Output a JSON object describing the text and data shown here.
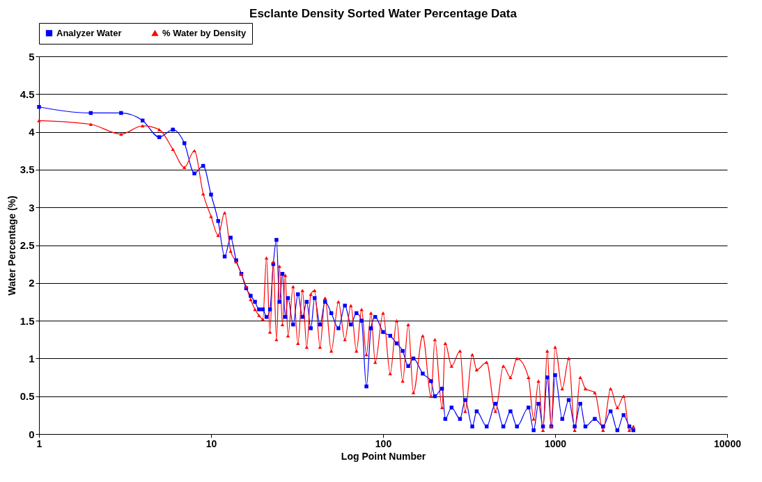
{
  "chart_data": {
    "type": "line",
    "title": "Esclante Density Sorted Water Percentage Data",
    "xlabel": "Log Point Number",
    "ylabel": "Water Percentage (%)",
    "log": "x",
    "xlim": [
      1,
      10000
    ],
    "xticks": [
      1,
      10,
      100,
      1000,
      10000
    ],
    "ylim": [
      0,
      5
    ],
    "yticks": [
      0,
      0.5,
      1,
      1.5,
      2,
      2.5,
      3,
      3.5,
      4,
      4.5,
      5
    ],
    "grid": "y",
    "legend": "top",
    "line_style": "solid",
    "series": [
      {
        "name": "Analyzer Water",
        "color": "#0000ff",
        "marker": "square",
        "x": [
          1,
          2,
          3,
          4,
          5,
          6,
          7,
          8,
          9,
          10,
          11,
          12,
          13,
          14,
          15,
          16,
          17,
          18,
          19,
          20,
          21,
          22,
          23,
          24,
          25,
          26,
          27,
          28,
          30,
          32,
          34,
          36,
          38,
          40,
          43,
          46,
          50,
          55,
          60,
          65,
          70,
          75,
          80,
          85,
          90,
          100,
          110,
          120,
          130,
          140,
          150,
          170,
          190,
          200,
          220,
          230,
          250,
          280,
          300,
          330,
          350,
          400,
          450,
          500,
          550,
          600,
          700,
          750,
          800,
          850,
          900,
          950,
          1000,
          1100,
          1200,
          1300,
          1400,
          1500,
          1700,
          1900,
          2100,
          2300,
          2500,
          2700,
          2850
        ],
        "values": [
          4.33,
          4.25,
          4.25,
          4.15,
          3.93,
          4.03,
          3.85,
          3.45,
          3.55,
          3.17,
          2.82,
          2.35,
          2.6,
          2.3,
          2.12,
          1.93,
          1.83,
          1.75,
          1.65,
          1.65,
          1.55,
          1.65,
          2.25,
          2.57,
          1.75,
          2.12,
          1.55,
          1.8,
          1.45,
          1.85,
          1.55,
          1.75,
          1.4,
          1.8,
          1.45,
          1.75,
          1.6,
          1.4,
          1.7,
          1.45,
          1.6,
          1.5,
          0.63,
          1.4,
          1.55,
          1.35,
          1.3,
          1.2,
          1.1,
          0.9,
          1.0,
          0.8,
          0.7,
          0.5,
          0.6,
          0.2,
          0.35,
          0.2,
          0.45,
          0.1,
          0.3,
          0.1,
          0.4,
          0.1,
          0.3,
          0.1,
          0.35,
          0.05,
          0.4,
          0.1,
          0.75,
          0.1,
          0.78,
          0.2,
          0.45,
          0.1,
          0.4,
          0.1,
          0.2,
          0.1,
          0.3,
          0.05,
          0.25,
          0.1,
          0.05
        ]
      },
      {
        "name": "% Water by Density",
        "color": "#ff0000",
        "marker": "triangle",
        "x": [
          1,
          2,
          3,
          4,
          5,
          6,
          7,
          8,
          9,
          10,
          11,
          12,
          13,
          14,
          15,
          16,
          17,
          18,
          19,
          20,
          21,
          22,
          23,
          24,
          25,
          26,
          27,
          28,
          30,
          32,
          34,
          36,
          38,
          40,
          43,
          46,
          50,
          55,
          60,
          65,
          70,
          75,
          80,
          85,
          90,
          100,
          110,
          120,
          130,
          140,
          150,
          170,
          190,
          200,
          220,
          230,
          250,
          280,
          300,
          330,
          350,
          400,
          450,
          500,
          550,
          600,
          700,
          750,
          800,
          850,
          900,
          950,
          1000,
          1100,
          1200,
          1300,
          1400,
          1500,
          1700,
          1900,
          2100,
          2300,
          2500,
          2700,
          2850
        ],
        "values": [
          4.15,
          4.1,
          3.97,
          4.08,
          4.03,
          3.77,
          3.53,
          3.75,
          3.18,
          2.88,
          2.63,
          2.93,
          2.42,
          2.28,
          2.12,
          1.95,
          1.78,
          1.65,
          1.57,
          1.52,
          2.33,
          1.35,
          2.28,
          1.25,
          2.22,
          1.45,
          2.1,
          1.3,
          1.95,
          1.2,
          1.9,
          1.15,
          1.85,
          1.9,
          1.15,
          1.8,
          1.1,
          1.75,
          1.25,
          1.7,
          1.1,
          1.65,
          1.05,
          1.6,
          0.95,
          1.6,
          0.8,
          1.5,
          0.7,
          1.45,
          0.55,
          1.3,
          0.5,
          1.25,
          0.35,
          1.2,
          0.9,
          1.1,
          0.3,
          1.05,
          0.85,
          0.95,
          0.3,
          0.9,
          0.75,
          1.0,
          0.75,
          0.2,
          0.7,
          0.05,
          1.1,
          0.1,
          1.15,
          0.6,
          1.0,
          0.05,
          0.75,
          0.6,
          0.55,
          0.05,
          0.6,
          0.35,
          0.5,
          0.05,
          0.1
        ]
      }
    ]
  }
}
